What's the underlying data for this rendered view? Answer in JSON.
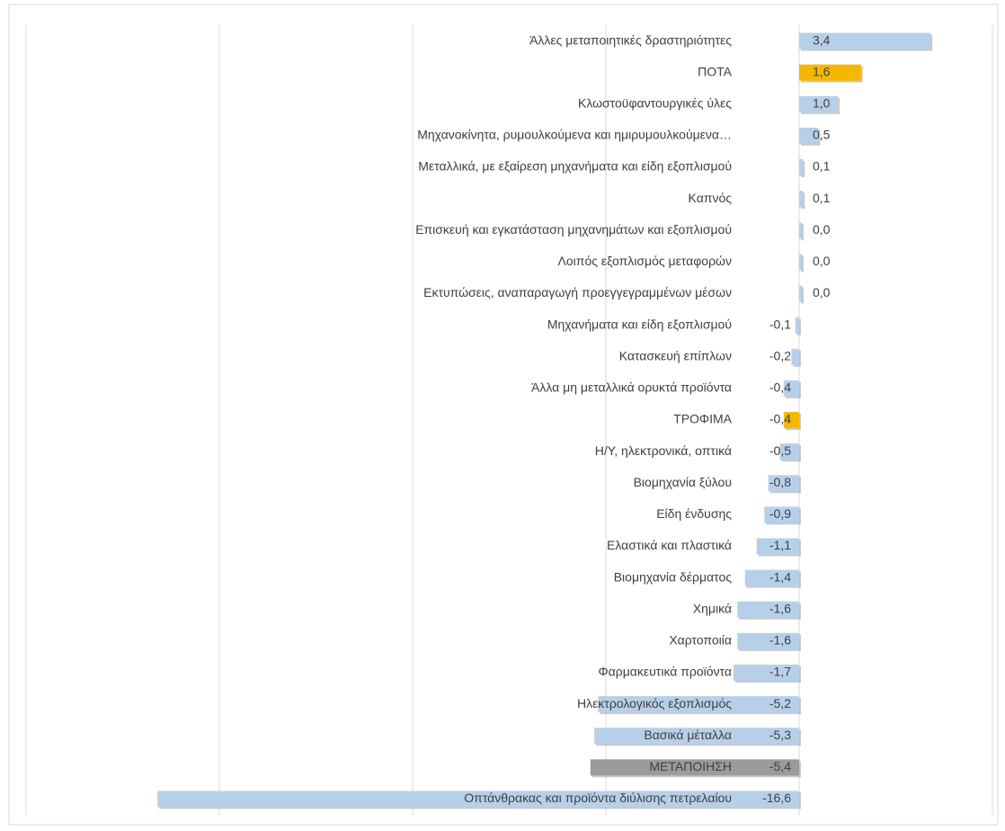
{
  "chart_data": {
    "type": "bar",
    "orientation": "horizontal",
    "categories": [
      "Άλλες μεταποιητικές δραστηριότητες",
      "ΠΟΤΑ",
      "Κλωστοϋφαντουργικές ύλες",
      "Μηχανοκίνητα, ρυμουλκούμενα και ημιρυμουλκούμενα…",
      "Μεταλλικά, με εξαίρεση μηχανήματα και είδη εξοπλισμού",
      "Καπνός",
      "Επισκευή και εγκατάσταση μηχανημάτων και εξοπλισμού",
      "Λοιπός εξοπλισμός μεταφορών",
      "Εκτυπώσεις, αναπαραγωγή προεγγεγραμμένων μέσων",
      "Μηχανήματα και είδη εξοπλισμού",
      "Κατασκευή επίπλων",
      "Άλλα μη μεταλλικά ορυκτά προϊόντα",
      "ΤΡΟΦΙΜΑ",
      "Η/Υ, ηλεκτρονικά, οπτικά",
      "Βιομηχανία ξύλου",
      "Είδη ένδυσης",
      "Ελαστικά και πλαστικά",
      "Βιομηχανία δέρματος",
      "Χημικά",
      "Χαρτοποιία",
      "Φαρμακευτικά προϊόντα",
      "Ηλεκτρολογικός εξοπλισμός",
      "Βασικά μέταλλα",
      "ΜΕΤΑΠΟΙΗΣΗ",
      "Οπτάνθρακας και προϊόντα διύλισης πετρελαίου"
    ],
    "values": [
      3.4,
      1.6,
      1.0,
      0.5,
      0.1,
      0.1,
      0.0,
      0.0,
      0.0,
      -0.1,
      -0.2,
      -0.4,
      -0.4,
      -0.5,
      -0.8,
      -0.9,
      -1.1,
      -1.4,
      -1.6,
      -1.6,
      -1.7,
      -5.2,
      -5.3,
      -5.4,
      -16.6
    ],
    "value_labels": [
      "3,4",
      "1,6",
      "1,0",
      "0,5",
      "0,1",
      "0,1",
      "0,0",
      "0,0",
      "0,0",
      "-0,1",
      "-0,2",
      "-0,4",
      "-0,4",
      "-0,5",
      "-0,8",
      "-0,9",
      "-1,1",
      "-1,4",
      "-1,6",
      "-1,6",
      "-1,7",
      "-5,2",
      "-5,3",
      "-5,4",
      "-16,6"
    ],
    "colors": [
      "#b7d0ea",
      "#f5b800",
      "#b7d0ea",
      "#b7d0ea",
      "#b7d0ea",
      "#b7d0ea",
      "#b7d0ea",
      "#b7d0ea",
      "#b7d0ea",
      "#b7d0ea",
      "#b7d0ea",
      "#b7d0ea",
      "#f5b800",
      "#b7d0ea",
      "#b7d0ea",
      "#b7d0ea",
      "#b7d0ea",
      "#b7d0ea",
      "#b7d0ea",
      "#b7d0ea",
      "#b7d0ea",
      "#b7d0ea",
      "#b7d0ea",
      "#9b9b9b",
      "#b7d0ea"
    ],
    "xlim": [
      -20,
      5
    ],
    "xticks": [
      -20,
      -15,
      -10,
      -5,
      0,
      5
    ],
    "grid": true
  }
}
